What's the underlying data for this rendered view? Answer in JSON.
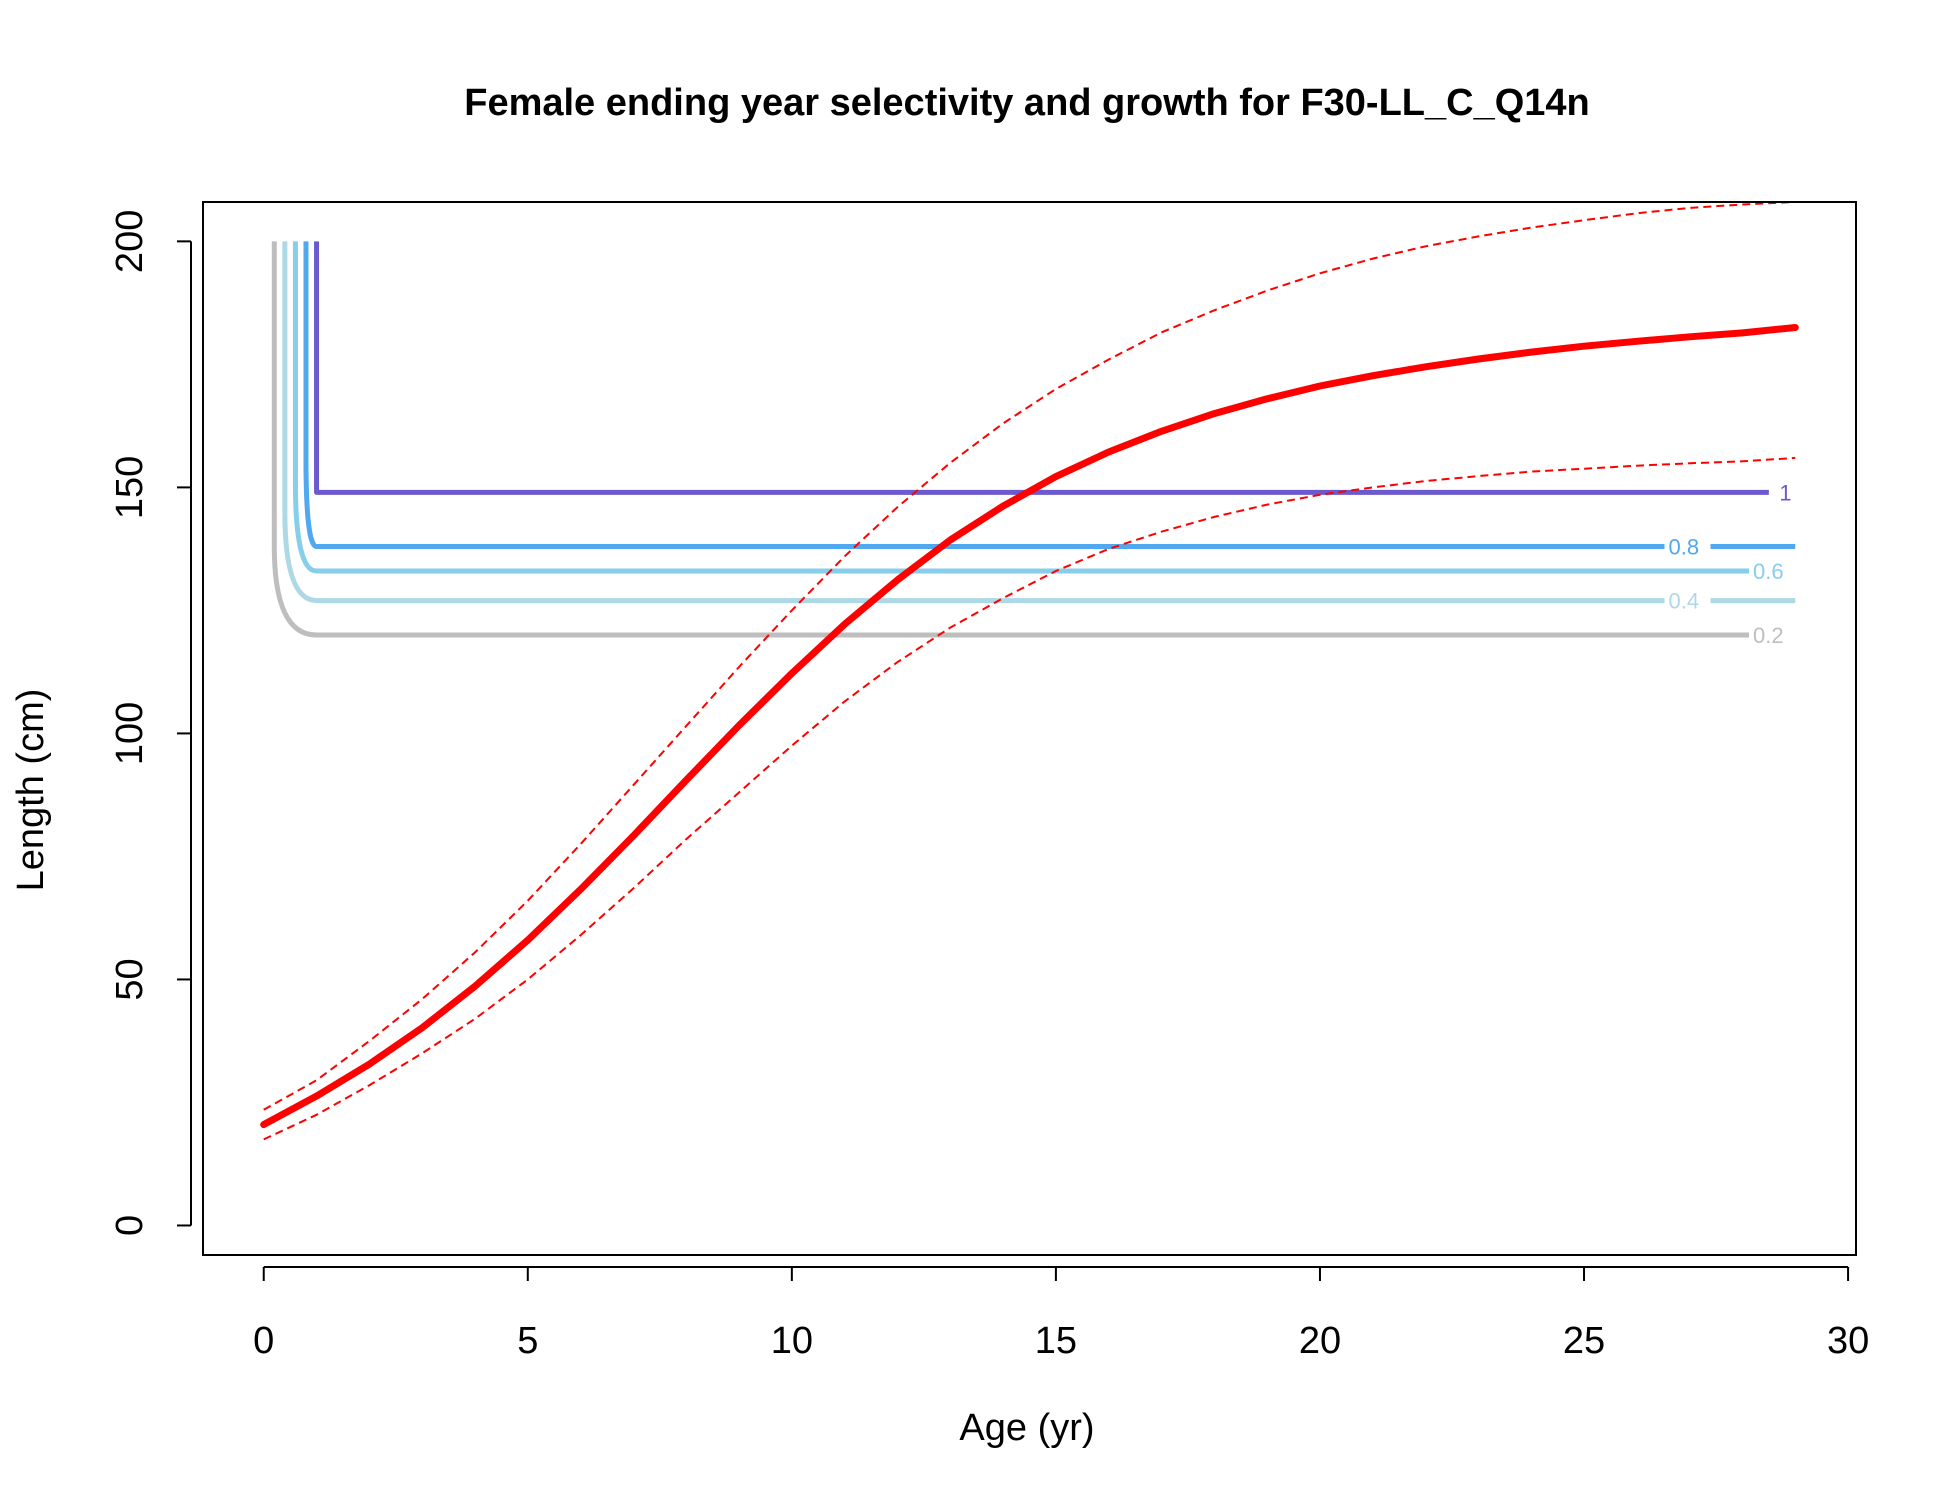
{
  "chart_data": {
    "type": "line",
    "title": "Female ending year selectivity and growth for F30-LL_C_Q14n",
    "xlabel": "Age (yr)",
    "ylabel": "Length (cm)",
    "xlim": [
      -1.15,
      30.15
    ],
    "ylim": [
      -6,
      208
    ],
    "x_ticks": [
      0,
      5,
      10,
      15,
      20,
      25,
      30
    ],
    "y_ticks": [
      0,
      50,
      100,
      150,
      200
    ],
    "x_tick_labels": [
      "0",
      "5",
      "10",
      "15",
      "20",
      "25",
      "30"
    ],
    "y_tick_labels": [
      "0",
      "50",
      "100",
      "150",
      "200"
    ],
    "grid": false,
    "legend": "none",
    "colors": {
      "growth": "#ff0000",
      "contour_1": "#6a5acd",
      "contour_0.8": "#4fa8f0",
      "contour_0.6": "#87ceeb",
      "contour_0.4": "#add8e6",
      "contour_0.2": "#bebebe"
    },
    "growth": {
      "x": [
        0,
        1,
        2,
        3,
        4,
        5,
        6,
        7,
        8,
        9,
        10,
        11,
        12,
        13,
        14,
        15,
        16,
        17,
        18,
        19,
        20,
        21,
        22,
        23,
        24,
        25,
        26,
        27,
        28,
        29
      ],
      "mean": [
        20.5,
        26.3,
        32.8,
        40.2,
        48.6,
        58.0,
        68.3,
        79.2,
        90.5,
        101.6,
        112.2,
        122.2,
        131.2,
        139.3,
        146.2,
        152.2,
        157.2,
        161.4,
        165.0,
        168.0,
        170.6,
        172.7,
        174.5,
        176.1,
        177.5,
        178.7,
        179.7,
        180.6,
        181.4,
        182.5
      ],
      "upper": [
        23.5,
        29.5,
        37.5,
        46.0,
        55.5,
        66.0,
        77.5,
        89.5,
        101.5,
        113.5,
        125.0,
        136.0,
        146.0,
        155.0,
        163.0,
        170.0,
        176.0,
        181.5,
        186.0,
        190.0,
        193.5,
        196.5,
        199.0,
        201.0,
        202.8,
        204.3,
        205.7,
        206.8,
        207.5,
        208.0
      ],
      "lower": [
        17.5,
        22.5,
        28.5,
        35.0,
        42.0,
        50.0,
        59.0,
        68.5,
        78.5,
        88.0,
        97.5,
        106.5,
        114.5,
        121.5,
        127.5,
        133.0,
        137.5,
        141.0,
        144.0,
        146.5,
        148.5,
        150.0,
        151.3,
        152.3,
        153.2,
        153.8,
        154.4,
        154.9,
        155.3,
        156.0
      ]
    },
    "selectivity_contours": [
      {
        "label": "1",
        "x_start": 1.0,
        "level": 149,
        "x_end": 28.5,
        "label_x": 28.7
      },
      {
        "label": "0.8",
        "x_start": 0.8,
        "level": 138,
        "x_end": 29.0,
        "label_x": 26.6
      },
      {
        "label": "0.6",
        "x_start": 0.6,
        "level": 133,
        "x_end": 28.0,
        "label_x": 28.2
      },
      {
        "label": "0.4",
        "x_start": 0.4,
        "level": 127,
        "x_end": 29.0,
        "label_x": 26.6
      },
      {
        "label": "0.2",
        "x_start": 0.2,
        "level": 120,
        "x_end": 28.0,
        "label_x": 28.2
      }
    ],
    "contour_top": 200
  }
}
